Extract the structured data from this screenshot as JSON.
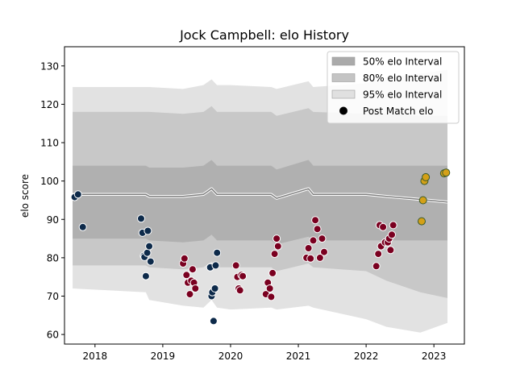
{
  "chart_data": {
    "type": "scatter",
    "title": "Jock Campbell: elo History",
    "xlabel": "",
    "ylabel": "elo score",
    "xlim": [
      2017.55,
      2023.45
    ],
    "ylim": [
      57.5,
      135.0
    ],
    "x_ticks": [
      2018,
      2019,
      2020,
      2021,
      2022,
      2023
    ],
    "x_tick_labels": [
      "2018",
      "2019",
      "2020",
      "2021",
      "2022",
      "2023"
    ],
    "y_ticks": [
      60,
      70,
      80,
      90,
      100,
      110,
      120,
      130
    ],
    "y_tick_labels": [
      "60",
      "70",
      "80",
      "90",
      "100",
      "110",
      "120",
      "130"
    ],
    "legend_position": "top-right",
    "legend": [
      {
        "label": "50% elo Interval",
        "kind": "band",
        "color": "#aaaaaa"
      },
      {
        "label": "80% elo Interval",
        "kind": "band",
        "color": "#c4c4c4"
      },
      {
        "label": "95% elo Interval",
        "kind": "band",
        "color": "#e0e0e0"
      },
      {
        "label": "Post Match elo",
        "kind": "dot",
        "color": "#000000"
      }
    ],
    "colors": {
      "band95": "#e2e2e2",
      "band80": "#c8c8c8",
      "band50": "#b0b0b0",
      "mean_line": "#808080",
      "mean_halo": "#ffffff",
      "dots_era1": "#0d2a4a",
      "dots_era2": "#7a0020",
      "dots_era3": "#d4a017",
      "dot_edge_era3": "#3a5a2a"
    },
    "bands": {
      "x": [
        2017.67,
        2018.75,
        2018.8,
        2019.3,
        2019.6,
        2019.72,
        2019.8,
        2020.0,
        2020.6,
        2020.68,
        2021.15,
        2021.22,
        2022.0,
        2022.3,
        2022.8,
        2023.2
      ],
      "mean": [
        96.5,
        96.5,
        96.0,
        96.0,
        96.5,
        98.0,
        96.5,
        96.5,
        96.5,
        95.5,
        98.0,
        96.5,
        96.5,
        96.0,
        95.2,
        94.5
      ],
      "p50_low": [
        85.0,
        85.0,
        84.5,
        84.0,
        84.5,
        86.0,
        84.5,
        84.5,
        84.5,
        83.5,
        85.5,
        84.5,
        84.5,
        84.5,
        84.5,
        84.5
      ],
      "p50_high": [
        104.0,
        104.0,
        103.5,
        103.5,
        104.0,
        105.5,
        104.0,
        104.0,
        104.0,
        103.0,
        105.5,
        104.0,
        104.0,
        104.0,
        104.0,
        104.0
      ],
      "p80_low": [
        78.0,
        78.0,
        77.5,
        77.0,
        77.5,
        79.0,
        77.5,
        77.5,
        77.5,
        76.5,
        78.5,
        77.5,
        76.5,
        74.0,
        71.0,
        69.5
      ],
      "p80_high": [
        118.0,
        118.0,
        118.0,
        117.5,
        118.0,
        119.5,
        118.0,
        118.0,
        118.0,
        117.0,
        119.0,
        118.0,
        117.5,
        117.5,
        117.0,
        117.0
      ],
      "p95_low": [
        72.0,
        71.0,
        69.0,
        67.5,
        67.0,
        69.0,
        67.0,
        66.5,
        67.0,
        66.5,
        67.5,
        67.0,
        64.0,
        62.0,
        60.5,
        63.0
      ],
      "p95_high": [
        124.5,
        124.5,
        124.5,
        124.0,
        125.0,
        126.5,
        125.0,
        125.0,
        124.5,
        124.0,
        126.0,
        124.5,
        125.5,
        127.0,
        128.0,
        129.0
      ]
    },
    "series": [
      {
        "era": 1,
        "x": [
          2017.7,
          2017.75,
          2017.82,
          2018.68,
          2018.7,
          2018.72,
          2018.73,
          2018.75,
          2018.77,
          2018.78,
          2018.8,
          2018.82,
          2019.7,
          2019.72,
          2019.73,
          2019.75,
          2019.77,
          2019.78,
          2019.8
        ],
        "y": [
          95.8,
          96.5,
          88.0,
          90.2,
          86.5,
          80.5,
          80.2,
          75.2,
          81.3,
          87.0,
          83.0,
          79.0,
          77.5,
          70.0,
          71.0,
          63.5,
          72.0,
          78.0,
          81.3
        ]
      },
      {
        "era": 2,
        "x": [
          2019.3,
          2019.32,
          2019.35,
          2019.37,
          2019.4,
          2019.42,
          2019.44,
          2019.46,
          2019.48,
          2020.08,
          2020.1,
          2020.12,
          2020.14,
          2020.16,
          2020.18,
          2020.52,
          2020.55,
          2020.58,
          2020.6,
          2020.62,
          2020.65,
          2020.68,
          2020.7,
          2021.12,
          2021.15,
          2021.18,
          2021.22,
          2021.25,
          2021.28,
          2021.32,
          2021.35,
          2021.38,
          2022.15,
          2022.18,
          2022.2,
          2022.22,
          2022.25,
          2022.28,
          2022.32,
          2022.34,
          2022.36,
          2022.38,
          2022.4
        ],
        "y": [
          78.5,
          79.8,
          75.5,
          73.5,
          70.5,
          74.0,
          77.0,
          73.5,
          72.0,
          78.0,
          75.0,
          72.0,
          71.5,
          75.5,
          75.2,
          70.5,
          73.5,
          72.0,
          69.8,
          76.0,
          81.0,
          85.0,
          83.0,
          80.0,
          82.5,
          79.8,
          84.5,
          89.8,
          87.5,
          80.0,
          85.0,
          81.5,
          77.8,
          81.0,
          88.5,
          83.0,
          88.0,
          84.0,
          84.0,
          85.0,
          82.0,
          86.0,
          88.5
        ]
      },
      {
        "era": 3,
        "x": [
          2022.82,
          2022.84,
          2022.86,
          2022.88,
          2023.15,
          2023.18
        ],
        "y": [
          89.5,
          95.0,
          100.0,
          101.0,
          102.0,
          102.2
        ]
      }
    ]
  }
}
